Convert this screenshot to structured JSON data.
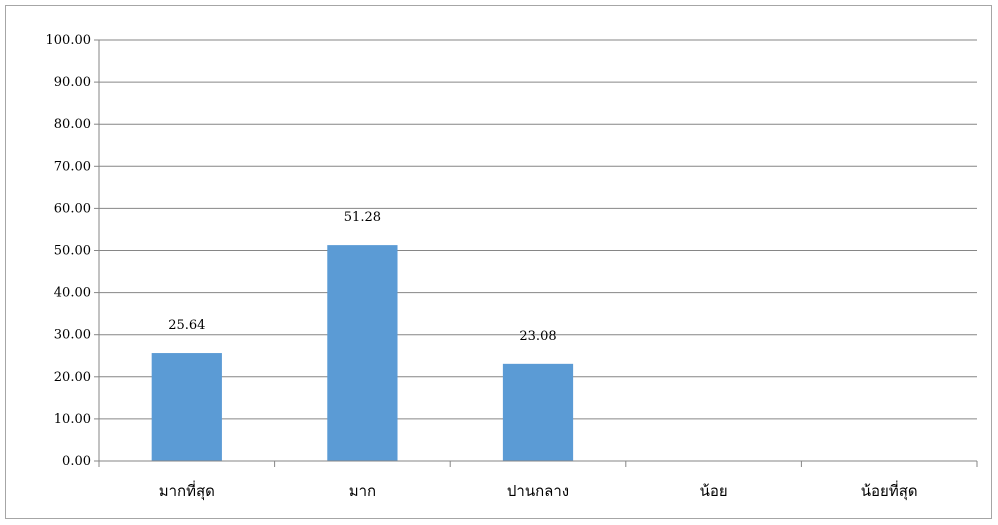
{
  "chart_data": {
    "type": "bar",
    "title": "",
    "xlabel": "",
    "ylabel": "",
    "categories": [
      "มากที่สุด",
      "มาก",
      "ปานกลาง",
      "น้อย",
      "น้อยที่สุด"
    ],
    "values": [
      25.64,
      51.28,
      23.08,
      0,
      0
    ],
    "data_labels": [
      "25.64",
      "51.28",
      "23.08",
      "",
      ""
    ],
    "ylim": [
      0,
      100
    ],
    "y_ticks": [
      0,
      10,
      20,
      30,
      40,
      50,
      60,
      70,
      80,
      90,
      100
    ],
    "y_tick_labels": [
      "0.00",
      "10.00",
      "20.00",
      "30.00",
      "40.00",
      "50.00",
      "60.00",
      "70.00",
      "80.00",
      "90.00",
      "100.00"
    ],
    "grid": true,
    "legend": "none",
    "bar_color": "#5b9bd5",
    "gridline_color": "#868686"
  }
}
